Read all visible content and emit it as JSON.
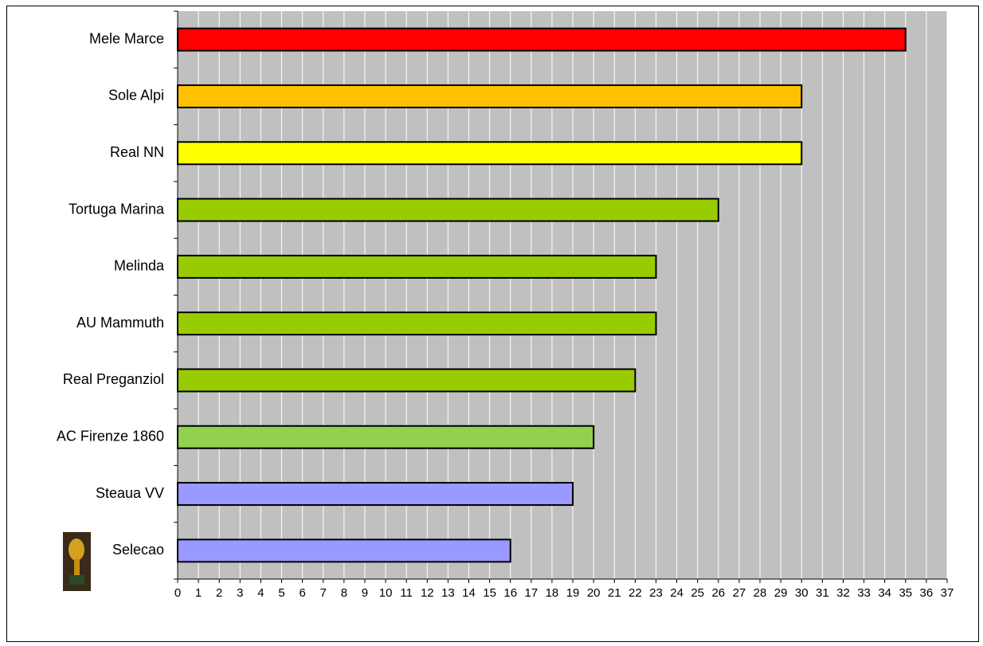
{
  "chart_data": {
    "type": "hbar",
    "categories": [
      "Mele Marce",
      "Sole Alpi",
      "Real NN",
      "Tortuga Marina",
      "Melinda",
      "AU Mammuth",
      "Real Preganziol",
      "AC Firenze 1860",
      "Steaua VV",
      "Selecao"
    ],
    "values": [
      35,
      30,
      30,
      26,
      23,
      23,
      22,
      20,
      19,
      16
    ],
    "colors": [
      "#ff0000",
      "#ffc000",
      "#ffff00",
      "#99cc00",
      "#99cc00",
      "#99cc00",
      "#99cc00",
      "#92d050",
      "#9999ff",
      "#9999ff"
    ],
    "xlim": [
      0,
      37
    ],
    "xticks": [
      0,
      1,
      2,
      3,
      4,
      5,
      6,
      7,
      8,
      9,
      10,
      11,
      12,
      13,
      14,
      15,
      16,
      17,
      18,
      19,
      20,
      21,
      22,
      23,
      24,
      25,
      26,
      27,
      28,
      29,
      30,
      31,
      32,
      33,
      34,
      35,
      36,
      37
    ],
    "grid": true
  }
}
